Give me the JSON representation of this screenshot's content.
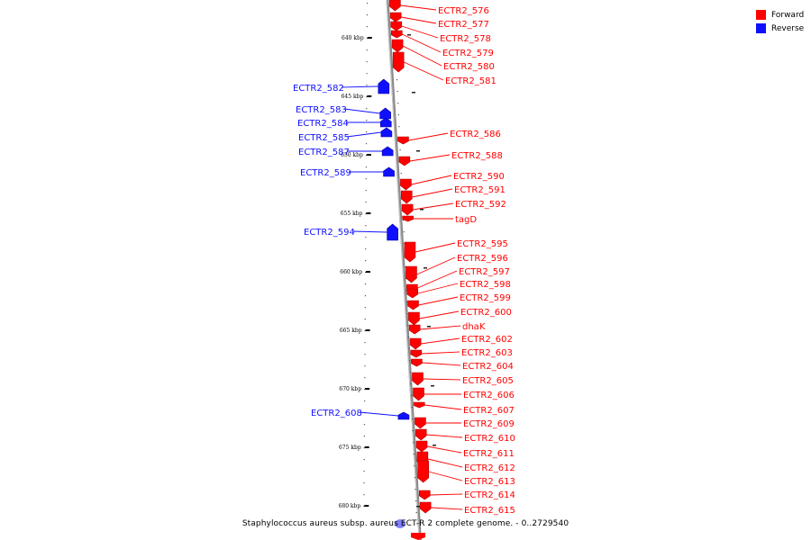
{
  "legend": {
    "items": [
      {
        "label": "Forward",
        "color": "#ff0000"
      },
      {
        "label": "Reverse",
        "color": "#1010ff"
      }
    ]
  },
  "caption": "Staphylococcus aureus subsp. aureus ECT-R 2 complete genome. - 0..2729540",
  "ticks": [
    {
      "label": "640 kbp",
      "pos": 640
    },
    {
      "label": "645 kbp",
      "pos": 645
    },
    {
      "label": "650 kbp",
      "pos": 650
    },
    {
      "label": "655 kbp",
      "pos": 655
    },
    {
      "label": "660 kbp",
      "pos": 660
    },
    {
      "label": "665 kbp",
      "pos": 665
    },
    {
      "label": "670 kbp",
      "pos": 670
    },
    {
      "label": "675 kbp",
      "pos": 675
    },
    {
      "label": "680 kbp",
      "pos": 680
    }
  ],
  "genes": [
    {
      "name": "ECTR2_576",
      "strand": "forward"
    },
    {
      "name": "ECTR2_577",
      "strand": "forward"
    },
    {
      "name": "ECTR2_578",
      "strand": "forward"
    },
    {
      "name": "ECTR2_579",
      "strand": "forward"
    },
    {
      "name": "ECTR2_580",
      "strand": "forward"
    },
    {
      "name": "ECTR2_581",
      "strand": "forward"
    },
    {
      "name": "ECTR2_582",
      "strand": "reverse"
    },
    {
      "name": "ECTR2_583",
      "strand": "reverse"
    },
    {
      "name": "ECTR2_584",
      "strand": "reverse"
    },
    {
      "name": "ECTR2_585",
      "strand": "reverse"
    },
    {
      "name": "ECTR2_586",
      "strand": "forward"
    },
    {
      "name": "ECTR2_587",
      "strand": "reverse"
    },
    {
      "name": "ECTR2_588",
      "strand": "forward"
    },
    {
      "name": "ECTR2_589",
      "strand": "reverse"
    },
    {
      "name": "ECTR2_590",
      "strand": "forward"
    },
    {
      "name": "ECTR2_591",
      "strand": "forward"
    },
    {
      "name": "ECTR2_592",
      "strand": "forward"
    },
    {
      "name": "tagD",
      "strand": "forward"
    },
    {
      "name": "ECTR2_594",
      "strand": "reverse"
    },
    {
      "name": "ECTR2_595",
      "strand": "forward"
    },
    {
      "name": "ECTR2_596",
      "strand": "forward"
    },
    {
      "name": "ECTR2_597",
      "strand": "forward"
    },
    {
      "name": "ECTR2_598",
      "strand": "forward"
    },
    {
      "name": "ECTR2_599",
      "strand": "forward"
    },
    {
      "name": "ECTR2_600",
      "strand": "forward"
    },
    {
      "name": "dhaK",
      "strand": "forward"
    },
    {
      "name": "ECTR2_602",
      "strand": "forward"
    },
    {
      "name": "ECTR2_603",
      "strand": "forward"
    },
    {
      "name": "ECTR2_604",
      "strand": "forward"
    },
    {
      "name": "ECTR2_605",
      "strand": "forward"
    },
    {
      "name": "ECTR2_606",
      "strand": "forward"
    },
    {
      "name": "ECTR2_607",
      "strand": "forward"
    },
    {
      "name": "ECTR2_608",
      "strand": "reverse"
    },
    {
      "name": "ECTR2_609",
      "strand": "forward"
    },
    {
      "name": "ECTR2_610",
      "strand": "forward"
    },
    {
      "name": "ECTR2_611",
      "strand": "forward"
    },
    {
      "name": "ECTR2_612",
      "strand": "forward"
    },
    {
      "name": "ECTR2_613",
      "strand": "forward"
    },
    {
      "name": "ECTR2_614",
      "strand": "forward"
    },
    {
      "name": "ECTR2_615",
      "strand": "forward"
    }
  ]
}
